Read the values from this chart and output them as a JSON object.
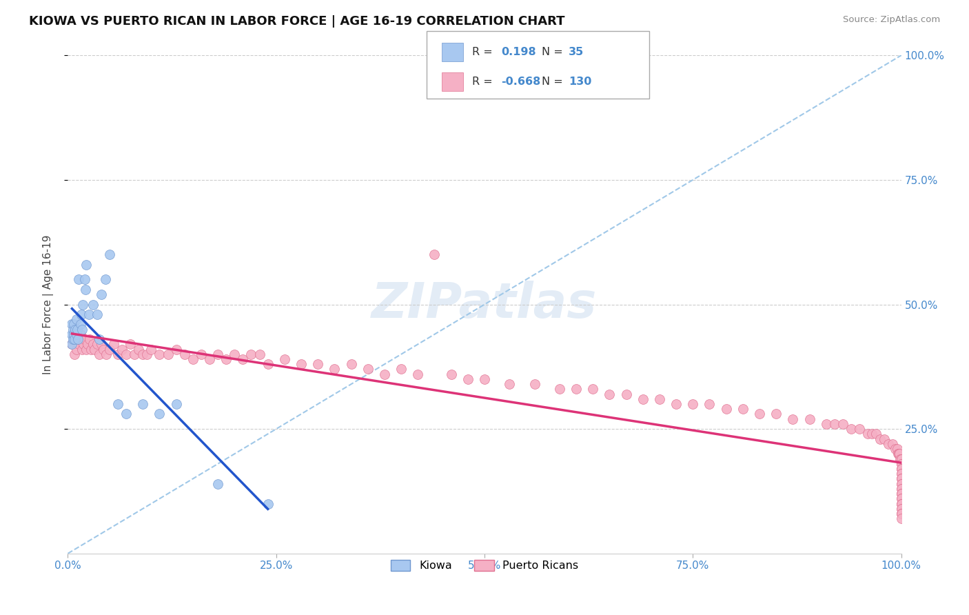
{
  "title": "KIOWA VS PUERTO RICAN IN LABOR FORCE | AGE 16-19 CORRELATION CHART",
  "source": "Source: ZipAtlas.com",
  "ylabel": "In Labor Force | Age 16-19",
  "xlim": [
    0.0,
    1.0
  ],
  "ylim": [
    0.0,
    1.0
  ],
  "xticks": [
    0.0,
    0.25,
    0.5,
    0.75,
    1.0
  ],
  "yticks": [
    0.25,
    0.5,
    0.75,
    1.0
  ],
  "xtick_labels": [
    "0.0%",
    "25.0%",
    "50.0%",
    "75.0%",
    "100.0%"
  ],
  "ytick_labels_right": [
    "25.0%",
    "50.0%",
    "75.0%",
    "100.0%"
  ],
  "background_color": "#ffffff",
  "kiowa_color": "#a8c8f0",
  "puerto_rican_color": "#f5b0c5",
  "kiowa_edge_color": "#7098d0",
  "puerto_rican_edge_color": "#e07090",
  "kiowa_R": 0.198,
  "kiowa_N": 35,
  "puerto_rican_R": -0.668,
  "puerto_rican_N": 130,
  "kiowa_trend_color": "#2255cc",
  "puerto_rican_trend_color": "#dd3377",
  "ref_line_color": "#a0c8e8",
  "grid_color": "#cccccc",
  "tick_color": "#4488cc",
  "title_color": "#111111",
  "label_color": "#444444",
  "kiowa_x": [
    0.005,
    0.005,
    0.005,
    0.006,
    0.006,
    0.007,
    0.007,
    0.008,
    0.009,
    0.01,
    0.01,
    0.011,
    0.012,
    0.013,
    0.015,
    0.016,
    0.017,
    0.018,
    0.02,
    0.021,
    0.022,
    0.025,
    0.03,
    0.035,
    0.038,
    0.04,
    0.045,
    0.05,
    0.06,
    0.07,
    0.09,
    0.11,
    0.13,
    0.18,
    0.24
  ],
  "kiowa_y": [
    0.42,
    0.44,
    0.46,
    0.43,
    0.45,
    0.44,
    0.46,
    0.43,
    0.45,
    0.44,
    0.47,
    0.45,
    0.43,
    0.55,
    0.46,
    0.48,
    0.45,
    0.5,
    0.55,
    0.53,
    0.58,
    0.48,
    0.5,
    0.48,
    0.43,
    0.52,
    0.55,
    0.6,
    0.3,
    0.28,
    0.3,
    0.28,
    0.3,
    0.14,
    0.1
  ],
  "puerto_rican_x": [
    0.005,
    0.007,
    0.008,
    0.009,
    0.01,
    0.011,
    0.012,
    0.013,
    0.014,
    0.015,
    0.016,
    0.017,
    0.018,
    0.019,
    0.02,
    0.022,
    0.024,
    0.026,
    0.028,
    0.03,
    0.032,
    0.035,
    0.038,
    0.04,
    0.043,
    0.046,
    0.05,
    0.055,
    0.06,
    0.065,
    0.07,
    0.075,
    0.08,
    0.085,
    0.09,
    0.095,
    0.1,
    0.11,
    0.12,
    0.13,
    0.14,
    0.15,
    0.16,
    0.17,
    0.18,
    0.19,
    0.2,
    0.21,
    0.22,
    0.23,
    0.24,
    0.26,
    0.28,
    0.3,
    0.32,
    0.34,
    0.36,
    0.38,
    0.4,
    0.42,
    0.44,
    0.46,
    0.48,
    0.5,
    0.53,
    0.56,
    0.59,
    0.61,
    0.63,
    0.65,
    0.67,
    0.69,
    0.71,
    0.73,
    0.75,
    0.77,
    0.79,
    0.81,
    0.83,
    0.85,
    0.87,
    0.89,
    0.91,
    0.92,
    0.93,
    0.94,
    0.95,
    0.96,
    0.965,
    0.97,
    0.975,
    0.98,
    0.985,
    0.99,
    0.993,
    0.995,
    0.996,
    0.997,
    0.998,
    0.999,
    1.0,
    1.0,
    1.0,
    1.0,
    1.0,
    1.0,
    1.0,
    1.0,
    1.0,
    1.0,
    1.0,
    1.0,
    1.0,
    1.0,
    1.0,
    1.0,
    1.0,
    1.0,
    1.0,
    1.0,
    1.0,
    1.0,
    1.0,
    1.0,
    1.0,
    1.0,
    1.0,
    1.0,
    1.0,
    1.0
  ],
  "puerto_rican_y": [
    0.42,
    0.44,
    0.4,
    0.43,
    0.41,
    0.43,
    0.44,
    0.42,
    0.43,
    0.44,
    0.43,
    0.41,
    0.43,
    0.42,
    0.43,
    0.41,
    0.42,
    0.43,
    0.41,
    0.42,
    0.41,
    0.42,
    0.4,
    0.42,
    0.41,
    0.4,
    0.41,
    0.42,
    0.4,
    0.41,
    0.4,
    0.42,
    0.4,
    0.41,
    0.4,
    0.4,
    0.41,
    0.4,
    0.4,
    0.41,
    0.4,
    0.39,
    0.4,
    0.39,
    0.4,
    0.39,
    0.4,
    0.39,
    0.4,
    0.4,
    0.38,
    0.39,
    0.38,
    0.38,
    0.37,
    0.38,
    0.37,
    0.36,
    0.37,
    0.36,
    0.6,
    0.36,
    0.35,
    0.35,
    0.34,
    0.34,
    0.33,
    0.33,
    0.33,
    0.32,
    0.32,
    0.31,
    0.31,
    0.3,
    0.3,
    0.3,
    0.29,
    0.29,
    0.28,
    0.28,
    0.27,
    0.27,
    0.26,
    0.26,
    0.26,
    0.25,
    0.25,
    0.24,
    0.24,
    0.24,
    0.23,
    0.23,
    0.22,
    0.22,
    0.21,
    0.21,
    0.2,
    0.2,
    0.2,
    0.19,
    0.19,
    0.19,
    0.18,
    0.18,
    0.17,
    0.17,
    0.17,
    0.16,
    0.16,
    0.15,
    0.15,
    0.15,
    0.14,
    0.14,
    0.13,
    0.13,
    0.12,
    0.12,
    0.12,
    0.11,
    0.11,
    0.1,
    0.1,
    0.1,
    0.09,
    0.09,
    0.08,
    0.08,
    0.08,
    0.07
  ]
}
